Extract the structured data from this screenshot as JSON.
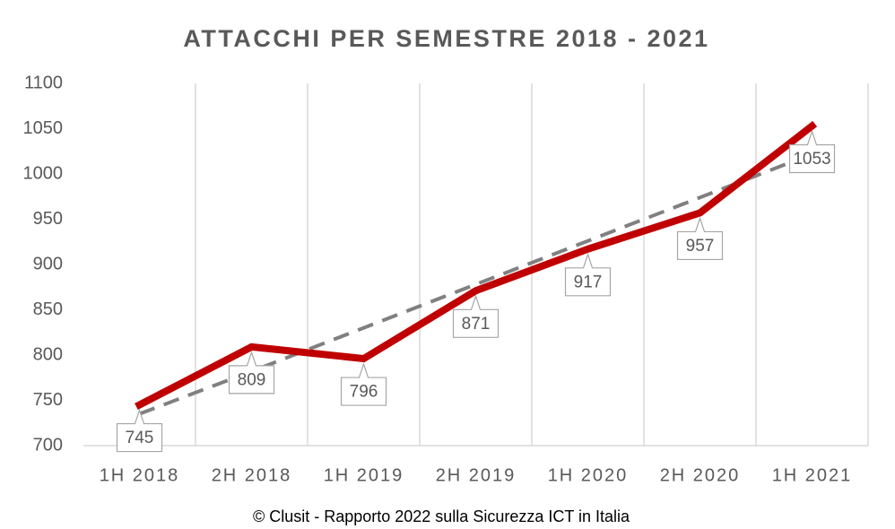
{
  "chart_data": {
    "type": "line",
    "title": "ATTACCHI PER SEMESTRE 2018 - 2021",
    "footnote": "© Clusit - Rapporto 2022 sulla Sicurezza ICT in Italia",
    "categories": [
      "1H 2018",
      "2H 2018",
      "1H 2019",
      "2H 2019",
      "1H 2020",
      "2H 2020",
      "1H 2021"
    ],
    "series": [
      {
        "color": "#c00000",
        "values": [
          745,
          809,
          796,
          871,
          917,
          957,
          1053
        ],
        "data_labels": true
      },
      {
        "color": "#808080",
        "dashed": true,
        "values": [
          735,
          782,
          830,
          878,
          926,
          974,
          1022
        ]
      }
    ],
    "ylim": [
      700,
      1100
    ],
    "yticks": [
      700,
      750,
      800,
      850,
      900,
      950,
      1000,
      1050,
      1100
    ],
    "grid": "vertical"
  }
}
